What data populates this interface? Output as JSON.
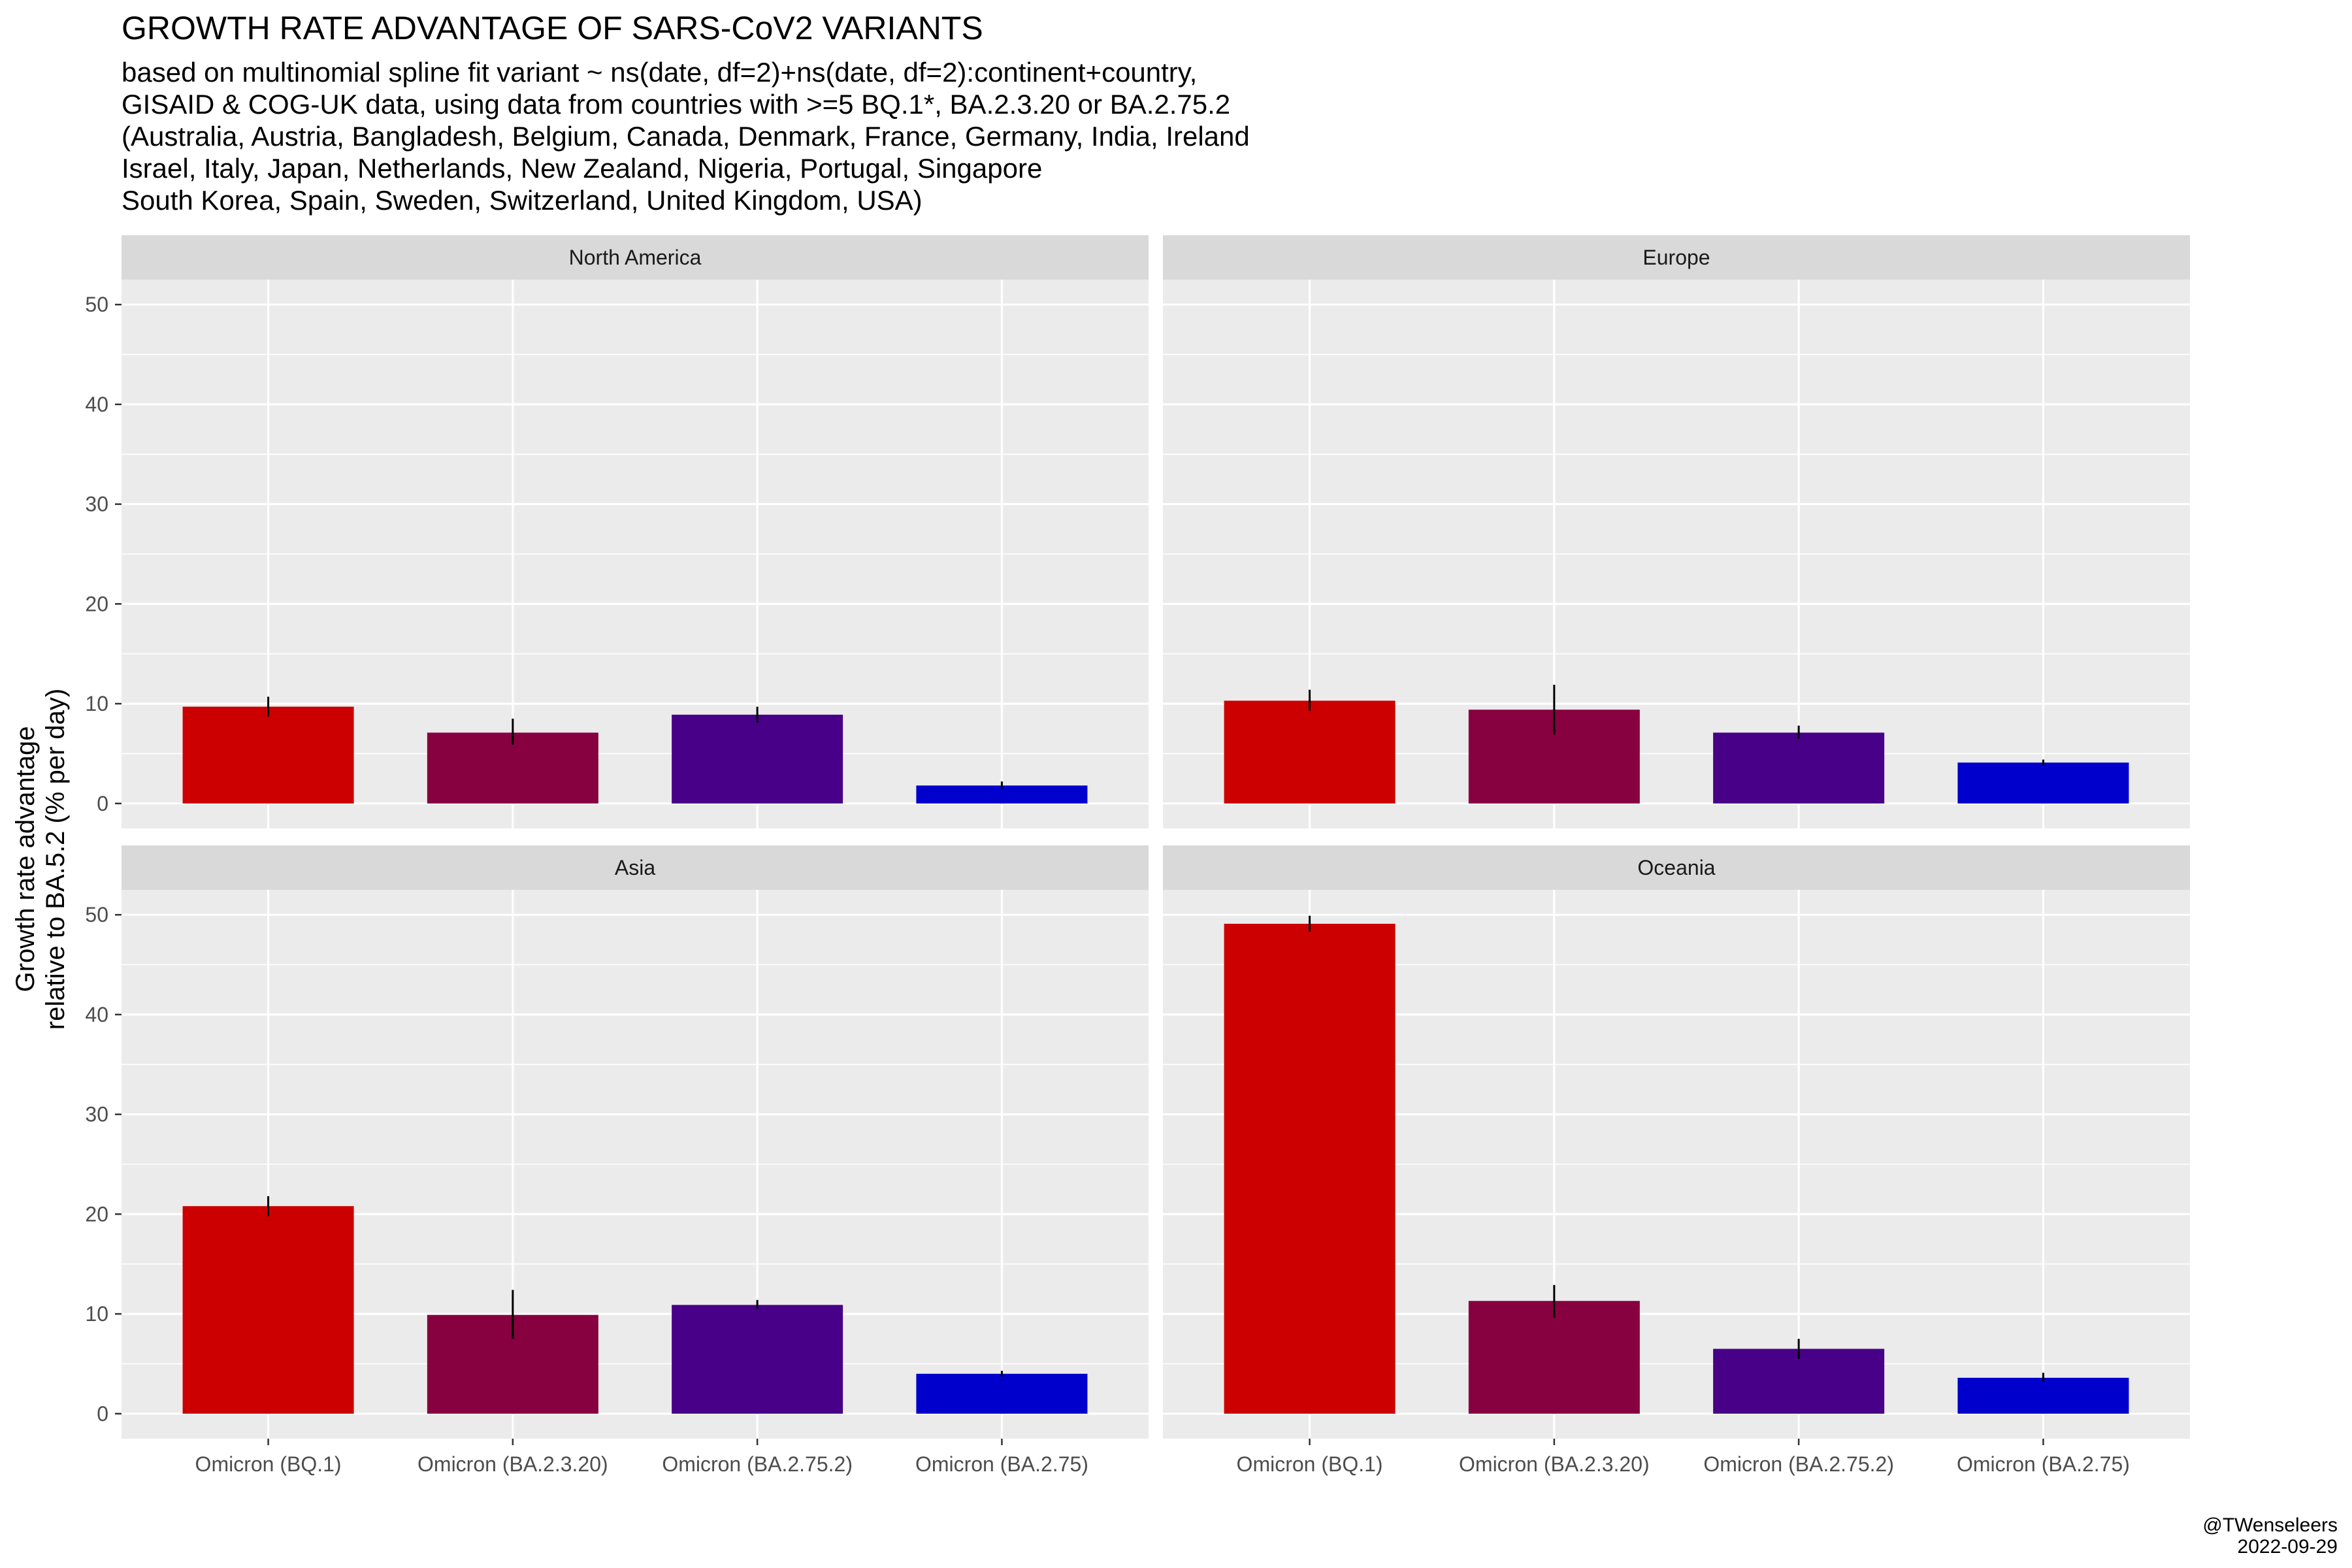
{
  "title": "GROWTH RATE ADVANTAGE OF SARS-CoV2 VARIANTS",
  "subtitle_lines": [
    "based on multinomial spline fit variant ~ ns(date, df=2)+ns(date, df=2):continent+country,",
    "GISAID & COG-UK data, using data from countries with >=5 BQ.1*, BA.2.3.20 or BA.2.75.2",
    "(Australia, Austria, Bangladesh, Belgium, Canada, Denmark, France, Germany, India, Ireland",
    "Israel, Italy, Japan, Netherlands, New Zealand, Nigeria, Portugal, Singapore",
    "South Korea, Spain, Sweden, Switzerland, United Kingdom, USA)"
  ],
  "credit": {
    "handle": "@TWenseleers",
    "date": "2022-09-29"
  },
  "colors": {
    "panel_bg": "#EBEBEB",
    "strip_bg": "#D9D9D9",
    "grid": "#FFFFFF",
    "Omicron (BQ.1)": "#CC0000",
    "Omicron (BA.2.3.20)": "#870040",
    "Omicron (BA.2.75.2)": "#470087",
    "Omicron (BA.2.75)": "#0000CC"
  },
  "chart_data": {
    "type": "bar",
    "ylabel_lines": [
      "Growth rate advantage",
      "relative to BA.5.2 (% per day)"
    ],
    "ylim": [
      -2.5,
      52.5
    ],
    "yticks": [
      0,
      10,
      20,
      30,
      40,
      50
    ],
    "categories": [
      "Omicron (BQ.1)",
      "Omicron (BA.2.3.20)",
      "Omicron (BA.2.75.2)",
      "Omicron (BA.2.75)"
    ],
    "grid": true,
    "facets": [
      {
        "name": "North America",
        "values": [
          9.7,
          7.1,
          8.9,
          1.8
        ],
        "lower": [
          8.7,
          5.9,
          8.1,
          1.5
        ],
        "upper": [
          10.7,
          8.5,
          9.7,
          2.2
        ]
      },
      {
        "name": "Europe",
        "values": [
          10.3,
          9.4,
          7.1,
          4.1
        ],
        "lower": [
          9.3,
          6.9,
          6.5,
          3.8
        ],
        "upper": [
          11.4,
          11.9,
          7.8,
          4.4
        ]
      },
      {
        "name": "Asia",
        "values": [
          20.8,
          9.9,
          10.9,
          4.0
        ],
        "lower": [
          19.8,
          7.5,
          10.5,
          3.7
        ],
        "upper": [
          21.8,
          12.4,
          11.4,
          4.3
        ]
      },
      {
        "name": "Oceania",
        "values": [
          49.1,
          11.3,
          6.5,
          3.6
        ],
        "lower": [
          48.3,
          9.6,
          5.5,
          3.2
        ],
        "upper": [
          49.9,
          12.9,
          7.5,
          4.1
        ]
      }
    ]
  }
}
